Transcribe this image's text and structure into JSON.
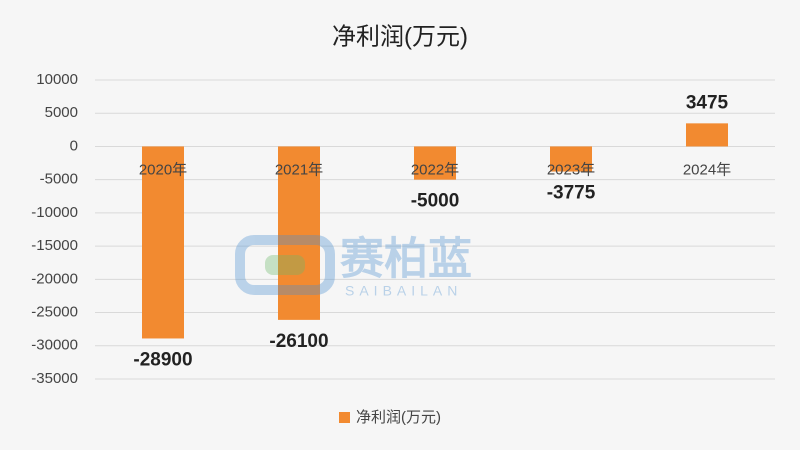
{
  "chart_data": {
    "type": "bar",
    "title": "净利润(万元)",
    "categories": [
      "2020年",
      "2021年",
      "2022年",
      "2023年",
      "2024年"
    ],
    "series": [
      {
        "name": "净利润(万元)",
        "color": "#f28a30",
        "values": [
          -28900,
          -26100,
          -5000,
          -3775,
          3475
        ]
      }
    ],
    "ylim": [
      -35000,
      10000
    ],
    "yticks": [
      -35000,
      -30000,
      -25000,
      -20000,
      -15000,
      -10000,
      -5000,
      0,
      5000,
      10000
    ],
    "grid": true,
    "legend": "bottom",
    "watermark": {
      "text": "赛柏蓝",
      "subtext": "SAIBAILAN"
    }
  }
}
